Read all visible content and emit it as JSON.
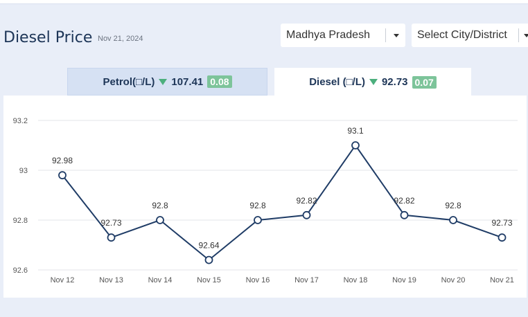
{
  "header": {
    "title": "Diesel Price",
    "date": "Nov 21, 2024"
  },
  "filters": {
    "state": "Madhya Pradesh",
    "city": "Select City/District"
  },
  "tabs": {
    "petrol": {
      "label": "Petrol(□/L)",
      "price": "107.41",
      "change": "0.08"
    },
    "diesel": {
      "label": "Diesel (□/L)",
      "price": "92.73",
      "change": "0.07"
    }
  },
  "colors": {
    "line": "#1f3c66",
    "grid": "#e3e6ea",
    "down": "#4caf7d",
    "badge": "#7dc49a"
  },
  "chart_data": {
    "type": "line",
    "categories": [
      "Nov 12",
      "Nov 13",
      "Nov 14",
      "Nov 15",
      "Nov 16",
      "Nov 17",
      "Nov 18",
      "Nov 19",
      "Nov 20",
      "Nov 21"
    ],
    "values": [
      92.98,
      92.73,
      92.8,
      92.64,
      92.8,
      92.82,
      93.1,
      92.82,
      92.8,
      92.73
    ],
    "value_labels": [
      "92.98",
      "92.73",
      "92.8",
      "92.64",
      "92.8",
      "92.82",
      "93.1",
      "92.82",
      "92.8",
      "92.73"
    ],
    "yticks": [
      92.6,
      92.8,
      93,
      93.2
    ],
    "ytick_labels": [
      "92.6",
      "92.8",
      "93",
      "93.2"
    ],
    "ylim": [
      92.6,
      93.2
    ],
    "grid": true
  }
}
